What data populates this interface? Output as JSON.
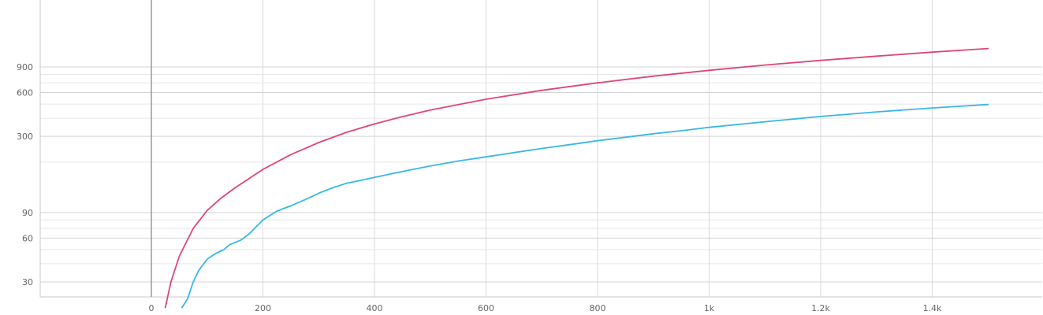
{
  "chart_data": {
    "type": "line",
    "title": "",
    "xlabel": "",
    "ylabel": "",
    "x_scale": "linear",
    "y_scale": "log",
    "xlim": [
      -200,
      1600
    ],
    "ylim": [
      20,
      2500
    ],
    "x_ticks": [
      {
        "value": 0,
        "label": "0"
      },
      {
        "value": 200,
        "label": "200"
      },
      {
        "value": 400,
        "label": "400"
      },
      {
        "value": 600,
        "label": "600"
      },
      {
        "value": 800,
        "label": "800"
      },
      {
        "value": 1000,
        "label": "1k"
      },
      {
        "value": 1200,
        "label": "1.2k"
      },
      {
        "value": 1400,
        "label": "1.4k"
      }
    ],
    "y_ticks": [
      {
        "value": 30,
        "label": "30"
      },
      {
        "value": 60,
        "label": "60"
      },
      {
        "value": 90,
        "label": "90"
      },
      {
        "value": 300,
        "label": "300"
      },
      {
        "value": 600,
        "label": "600"
      },
      {
        "value": 900,
        "label": "900"
      }
    ],
    "y_minor_gridlines": [
      40,
      50,
      70,
      80,
      200,
      400,
      500,
      700,
      800
    ],
    "grid": true,
    "legend": "none",
    "series": [
      {
        "color": "#e0457b",
        "x": [
          25,
          35,
          50,
          75,
          100,
          125,
          150,
          200,
          250,
          300,
          350,
          400,
          450,
          500,
          600,
          700,
          800,
          900,
          1000,
          1100,
          1200,
          1300,
          1400,
          1500
        ],
        "y": [
          20,
          30,
          45,
          70,
          93,
          113,
          133,
          178,
          225,
          272,
          320,
          365,
          410,
          455,
          540,
          622,
          700,
          778,
          853,
          927,
          998,
          1068,
          1137,
          1205
        ]
      },
      {
        "color": "#38b7e8",
        "x": [
          55,
          65,
          75,
          85,
          100,
          115,
          130,
          140,
          160,
          175,
          200,
          225,
          250,
          275,
          300,
          325,
          350,
          400,
          450,
          500,
          550,
          600,
          650,
          700,
          750,
          800,
          850,
          900,
          950,
          1000,
          1100,
          1200,
          1300,
          1400,
          1500
        ],
        "y": [
          20,
          23,
          30,
          36,
          43,
          47,
          50,
          54,
          58,
          64,
          80,
          92,
          100,
          110,
          122,
          133,
          143,
          157,
          172,
          188,
          203,
          217,
          232,
          248,
          263,
          280,
          296,
          313,
          328,
          346,
          378,
          411,
          442,
          470,
          497
        ]
      }
    ]
  }
}
